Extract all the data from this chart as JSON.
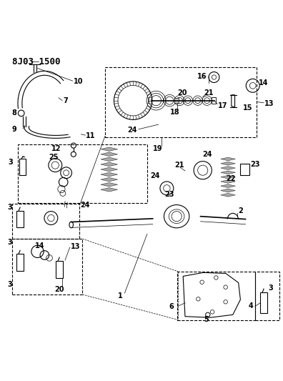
{
  "title": "8J03 1500",
  "bg_color": "#ffffff",
  "fg_color": "#000000",
  "fig_width": 3.96,
  "fig_height": 5.33,
  "dpi": 100
}
